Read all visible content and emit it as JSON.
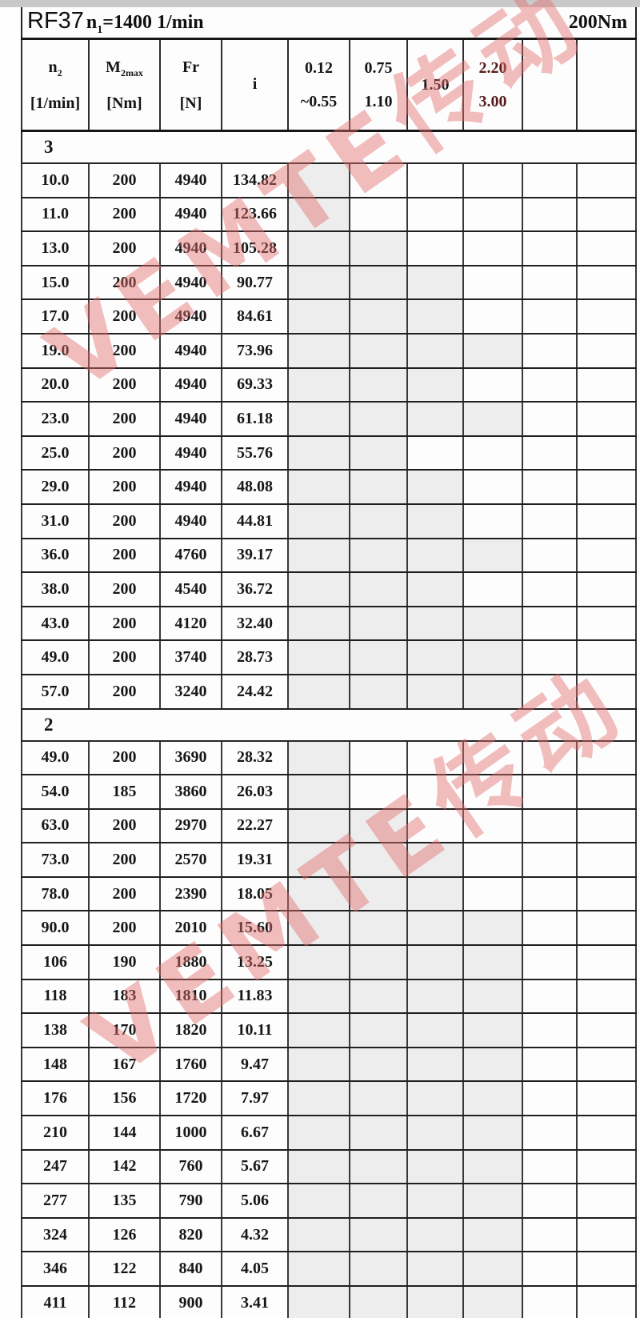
{
  "title": {
    "model": "RF37",
    "n1_base": "n",
    "n1_sub": "1",
    "n1_rest": "=1400 1/min",
    "torque": "200Nm"
  },
  "header": {
    "col_n2": {
      "base": "n",
      "sub": "2",
      "unit": "[1/min]"
    },
    "col_m2max": {
      "base": "M",
      "sub": "2max",
      "unit": "[Nm]"
    },
    "col_fr": {
      "base": "Fr",
      "sub": "",
      "unit": "[N]"
    },
    "col_i": {
      "base": "i",
      "sub": "",
      "unit": ""
    },
    "col_p1": {
      "line1": "0.12",
      "line2": "~0.55"
    },
    "col_p2": {
      "line1": "0.75",
      "line2": "1.10"
    },
    "col_p3": {
      "line1": "1.50",
      "line2": ""
    },
    "col_p4": {
      "line1": "2.20",
      "line2": "3.00"
    },
    "col_empty1": {
      "line1": "",
      "line2": ""
    },
    "col_empty2": {
      "line1": "",
      "line2": ""
    }
  },
  "sections": [
    {
      "label": "3",
      "rows": [
        {
          "n2": "10.0",
          "m2max": "200",
          "fr": "4940",
          "i": "134.82",
          "shaded": [
            1,
            0,
            0,
            0
          ]
        },
        {
          "n2": "11.0",
          "m2max": "200",
          "fr": "4940",
          "i": "123.66",
          "shaded": [
            1,
            0,
            0,
            0
          ]
        },
        {
          "n2": "13.0",
          "m2max": "200",
          "fr": "4940",
          "i": "105.28",
          "shaded": [
            1,
            1,
            0,
            0
          ]
        },
        {
          "n2": "15.0",
          "m2max": "200",
          "fr": "4940",
          "i": "90.77",
          "shaded": [
            1,
            1,
            1,
            0
          ]
        },
        {
          "n2": "17.0",
          "m2max": "200",
          "fr": "4940",
          "i": "84.61",
          "shaded": [
            1,
            1,
            1,
            0
          ]
        },
        {
          "n2": "19.0",
          "m2max": "200",
          "fr": "4940",
          "i": "73.96",
          "shaded": [
            1,
            1,
            1,
            1
          ]
        },
        {
          "n2": "20.0",
          "m2max": "200",
          "fr": "4940",
          "i": "69.33",
          "shaded": [
            1,
            1,
            1,
            0
          ]
        },
        {
          "n2": "23.0",
          "m2max": "200",
          "fr": "4940",
          "i": "61.18",
          "shaded": [
            1,
            1,
            1,
            1
          ]
        },
        {
          "n2": "25.0",
          "m2max": "200",
          "fr": "4940",
          "i": "55.76",
          "shaded": [
            1,
            1,
            0,
            0
          ]
        },
        {
          "n2": "29.0",
          "m2max": "200",
          "fr": "4940",
          "i": "48.08",
          "shaded": [
            1,
            1,
            1,
            0
          ]
        },
        {
          "n2": "31.0",
          "m2max": "200",
          "fr": "4940",
          "i": "44.81",
          "shaded": [
            1,
            1,
            1,
            0
          ]
        },
        {
          "n2": "36.0",
          "m2max": "200",
          "fr": "4760",
          "i": "39.17",
          "shaded": [
            1,
            1,
            1,
            1
          ]
        },
        {
          "n2": "38.0",
          "m2max": "200",
          "fr": "4540",
          "i": "36.72",
          "shaded": [
            1,
            1,
            1,
            0
          ]
        },
        {
          "n2": "43.0",
          "m2max": "200",
          "fr": "4120",
          "i": "32.40",
          "shaded": [
            1,
            1,
            1,
            1
          ]
        },
        {
          "n2": "49.0",
          "m2max": "200",
          "fr": "3740",
          "i": "28.73",
          "shaded": [
            1,
            1,
            1,
            1
          ]
        },
        {
          "n2": "57.0",
          "m2max": "200",
          "fr": "3240",
          "i": "24.42",
          "shaded": [
            1,
            1,
            1,
            1
          ]
        }
      ]
    },
    {
      "label": "2",
      "rows": [
        {
          "n2": "49.0",
          "m2max": "200",
          "fr": "3690",
          "i": "28.32",
          "shaded": [
            1,
            0,
            0,
            0
          ]
        },
        {
          "n2": "54.0",
          "m2max": "185",
          "fr": "3860",
          "i": "26.03",
          "shaded": [
            1,
            0,
            0,
            0
          ]
        },
        {
          "n2": "63.0",
          "m2max": "200",
          "fr": "2970",
          "i": "22.27",
          "shaded": [
            1,
            1,
            0,
            0
          ]
        },
        {
          "n2": "73.0",
          "m2max": "200",
          "fr": "2570",
          "i": "19.31",
          "shaded": [
            1,
            1,
            1,
            0
          ]
        },
        {
          "n2": "78.0",
          "m2max": "200",
          "fr": "2390",
          "i": "18.05",
          "shaded": [
            1,
            1,
            1,
            0
          ]
        },
        {
          "n2": "90.0",
          "m2max": "200",
          "fr": "2010",
          "i": "15.60",
          "shaded": [
            1,
            1,
            1,
            1
          ]
        },
        {
          "n2": "106",
          "m2max": "190",
          "fr": "1880",
          "i": "13.25",
          "shaded": [
            1,
            1,
            1,
            1
          ]
        },
        {
          "n2": "118",
          "m2max": "183",
          "fr": "1810",
          "i": "11.83",
          "shaded": [
            1,
            1,
            1,
            1
          ]
        },
        {
          "n2": "138",
          "m2max": "170",
          "fr": "1820",
          "i": "10.11",
          "shaded": [
            1,
            1,
            1,
            1
          ]
        },
        {
          "n2": "148",
          "m2max": "167",
          "fr": "1760",
          "i": "9.47",
          "shaded": [
            1,
            1,
            1,
            1
          ]
        },
        {
          "n2": "176",
          "m2max": "156",
          "fr": "1720",
          "i": "7.97",
          "shaded": [
            1,
            1,
            1,
            1
          ]
        },
        {
          "n2": "210",
          "m2max": "144",
          "fr": "1000",
          "i": "6.67",
          "shaded": [
            1,
            1,
            1,
            1
          ]
        },
        {
          "n2": "247",
          "m2max": "142",
          "fr": "760",
          "i": "5.67",
          "shaded": [
            1,
            1,
            1,
            1
          ]
        },
        {
          "n2": "277",
          "m2max": "135",
          "fr": "790",
          "i": "5.06",
          "shaded": [
            1,
            1,
            1,
            1
          ]
        },
        {
          "n2": "324",
          "m2max": "126",
          "fr": "820",
          "i": "4.32",
          "shaded": [
            1,
            1,
            1,
            1
          ]
        },
        {
          "n2": "346",
          "m2max": "122",
          "fr": "840",
          "i": "4.05",
          "shaded": [
            1,
            1,
            1,
            1
          ]
        },
        {
          "n2": "411",
          "m2max": "112",
          "fr": "900",
          "i": "3.41",
          "shaded": [
            1,
            1,
            1,
            1
          ]
        }
      ]
    }
  ],
  "watermark": {
    "text": "VEMTE传动"
  },
  "colors": {
    "accent_text": "#581c1c",
    "shaded_cell": "#ededed",
    "top_strip": "#c9c9c9",
    "watermark": "rgba(227,109,109,0.45)"
  }
}
